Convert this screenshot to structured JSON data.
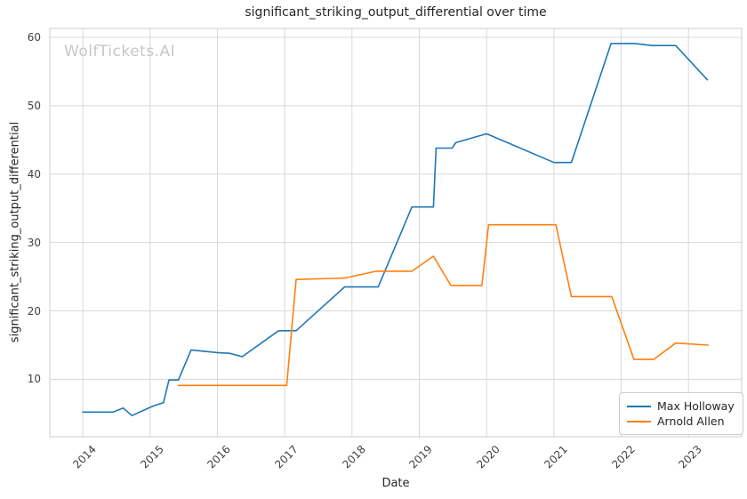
{
  "watermark": "WolfTickets.AI",
  "chart_data": {
    "type": "line",
    "title": "significant_striking_output_differential over time",
    "xlabel": "Date",
    "ylabel": "significant_striking_output_differential",
    "xlim": [
      2013.51,
      2023.79
    ],
    "ylim": [
      1.6,
      61.3
    ],
    "xticks": [
      2014,
      2015,
      2016,
      2017,
      2018,
      2019,
      2020,
      2021,
      2022,
      2023
    ],
    "yticks": [
      10,
      20,
      30,
      40,
      50,
      60
    ],
    "grid": true,
    "grid_color": "#d8d8d8",
    "spine_color": "#cccccc",
    "legend_position": "lower right",
    "series": [
      {
        "name": "Max Holloway",
        "color": "#1f77b4",
        "points": [
          [
            2014.0,
            5.2
          ],
          [
            2014.45,
            5.2
          ],
          [
            2014.6,
            5.8
          ],
          [
            2014.73,
            4.7
          ],
          [
            2015.05,
            6.1
          ],
          [
            2015.2,
            6.6
          ],
          [
            2015.28,
            9.9
          ],
          [
            2015.42,
            9.9
          ],
          [
            2015.61,
            14.3
          ],
          [
            2016.0,
            13.9
          ],
          [
            2016.18,
            13.8
          ],
          [
            2016.37,
            13.3
          ],
          [
            2016.91,
            17.1
          ],
          [
            2017.17,
            17.1
          ],
          [
            2017.89,
            23.5
          ],
          [
            2018.39,
            23.5
          ],
          [
            2018.89,
            35.2
          ],
          [
            2019.21,
            35.2
          ],
          [
            2019.25,
            43.8
          ],
          [
            2019.49,
            43.8
          ],
          [
            2019.54,
            44.6
          ],
          [
            2020.0,
            45.9
          ],
          [
            2021.0,
            41.7
          ],
          [
            2021.26,
            41.7
          ],
          [
            2021.85,
            59.1
          ],
          [
            2022.2,
            59.1
          ],
          [
            2022.46,
            58.8
          ],
          [
            2022.81,
            58.8
          ],
          [
            2023.28,
            53.8
          ]
        ]
      },
      {
        "name": "Arnold Allen",
        "color": "#ff7f0e",
        "points": [
          [
            2015.42,
            9.1
          ],
          [
            2017.03,
            9.1
          ],
          [
            2017.17,
            24.6
          ],
          [
            2017.89,
            24.8
          ],
          [
            2018.36,
            25.8
          ],
          [
            2018.89,
            25.8
          ],
          [
            2019.21,
            28.0
          ],
          [
            2019.47,
            23.7
          ],
          [
            2019.93,
            23.7
          ],
          [
            2020.03,
            32.6
          ],
          [
            2021.03,
            32.6
          ],
          [
            2021.26,
            22.1
          ],
          [
            2021.86,
            22.1
          ],
          [
            2022.19,
            12.9
          ],
          [
            2022.48,
            12.9
          ],
          [
            2022.81,
            15.3
          ],
          [
            2023.29,
            15.0
          ]
        ]
      }
    ]
  }
}
